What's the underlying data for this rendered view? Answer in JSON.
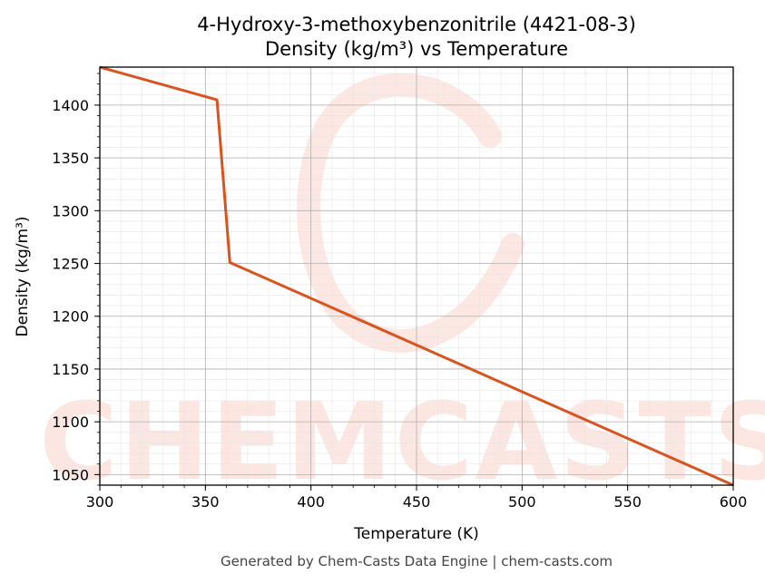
{
  "chart_data": {
    "type": "line",
    "title": "4-Hydroxy-3-methoxybenzonitrile (4421-08-3)",
    "subtitle": "Density (kg/m³) vs Temperature",
    "xlabel": "Temperature (K)",
    "ylabel": "Density (kg/m³)",
    "xlim": [
      300,
      600
    ],
    "ylim": [
      1040,
      1436
    ],
    "xticks": [
      300,
      350,
      400,
      450,
      500,
      550,
      600
    ],
    "yticks": [
      1050,
      1100,
      1150,
      1200,
      1250,
      1300,
      1350,
      1400
    ],
    "grid": true,
    "series": [
      {
        "color": "#d9531e",
        "x": [
          300,
          355.5,
          361.6,
          600
        ],
        "y": [
          1436,
          1405,
          1251,
          1040
        ]
      }
    ]
  },
  "watermark": "CHEMCASTS",
  "footer": "Generated by Chem-Casts Data Engine | chem-casts.com"
}
